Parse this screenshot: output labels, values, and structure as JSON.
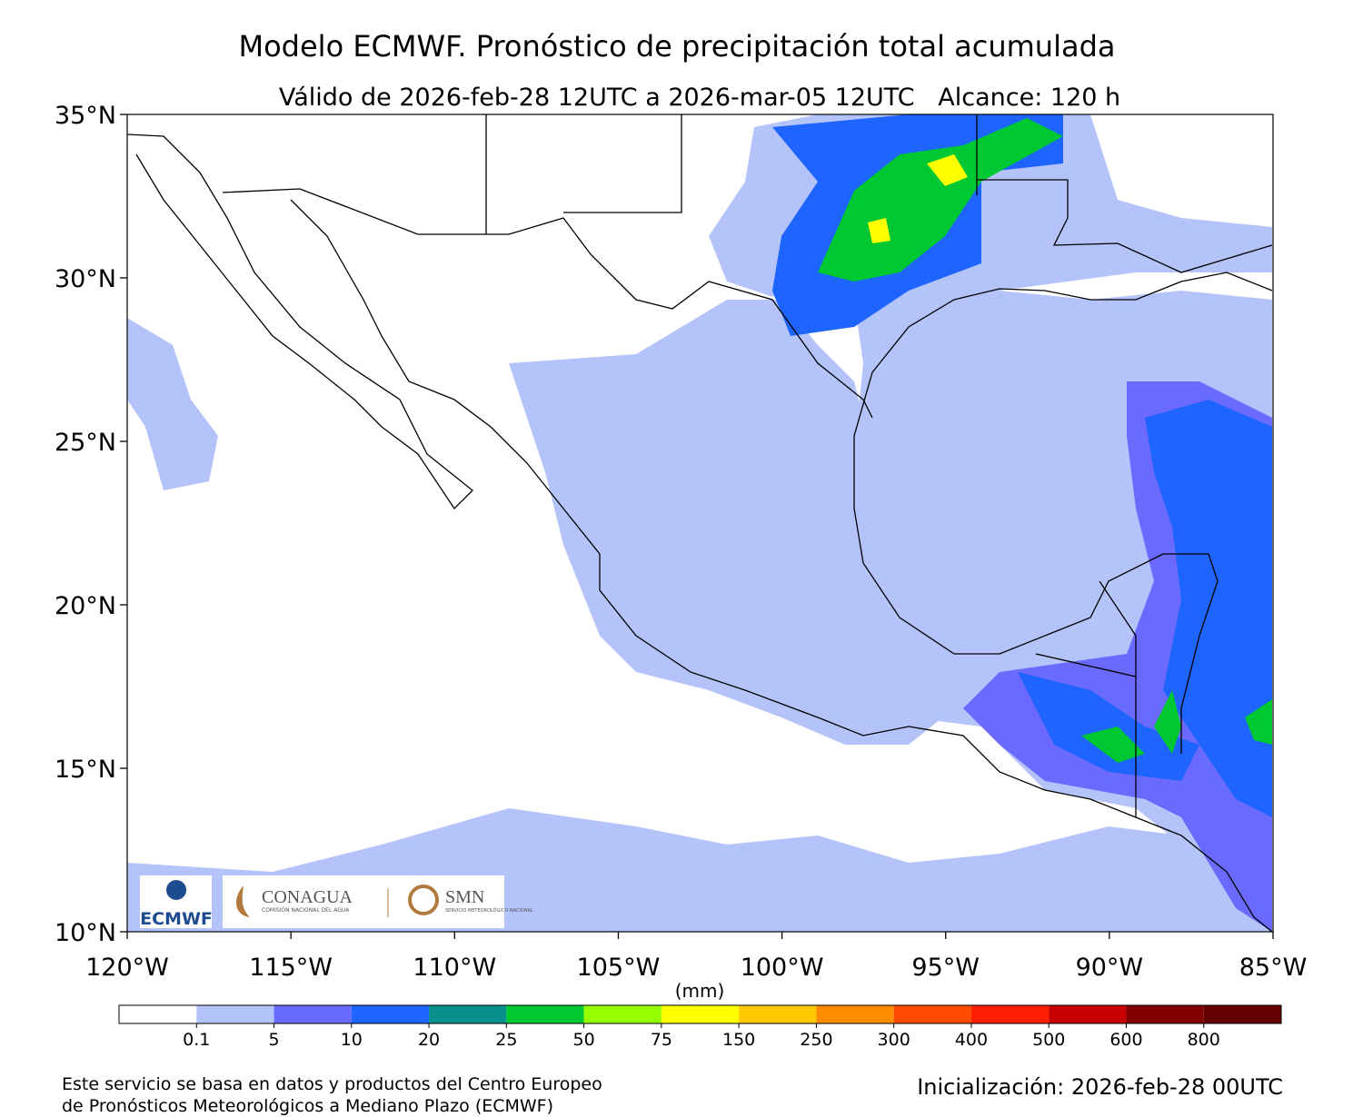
{
  "title": "Modelo ECMWF. Pronóstico de precipitación total acumulada",
  "subtitle": "Válido de 2026-feb-28 12UTC a 2026-mar-05 12UTC   Alcance: 120 h",
  "map": {
    "xlim": [
      -120,
      -85
    ],
    "ylim": [
      10,
      35
    ],
    "xticks": [
      {
        "value": -120,
        "label": "120°W"
      },
      {
        "value": -115,
        "label": "115°W"
      },
      {
        "value": -110,
        "label": "110°W"
      },
      {
        "value": -105,
        "label": "105°W"
      },
      {
        "value": -100,
        "label": "100°W"
      },
      {
        "value": -95,
        "label": "95°W"
      },
      {
        "value": -90,
        "label": "90°W"
      },
      {
        "value": -85,
        "label": "85°W"
      }
    ],
    "yticks": [
      {
        "value": 10,
        "label": "10°N"
      },
      {
        "value": 15,
        "label": "15°N"
      },
      {
        "value": 20,
        "label": "20°N"
      },
      {
        "value": 25,
        "label": "25°N"
      },
      {
        "value": 30,
        "label": "30°N"
      },
      {
        "value": 35,
        "label": "35°N"
      }
    ]
  },
  "colorbar": {
    "unit": "(mm)",
    "colors": [
      "#ffffff",
      "#b4c3fa",
      "#6a6aff",
      "#1e64ff",
      "#0a8f8f",
      "#00c832",
      "#96ff00",
      "#ffff00",
      "#ffc800",
      "#ff8c00",
      "#ff4b00",
      "#ff1e00",
      "#c80000",
      "#820000",
      "#640000"
    ],
    "ticks": [
      0.1,
      5,
      10,
      20,
      25,
      50,
      75,
      150,
      250,
      300,
      400,
      500,
      600,
      800
    ]
  },
  "logos": {
    "ecmwf": "ECMWF",
    "conagua": "CONAGUA",
    "conagua_sub": "COMISIÓN NACIONAL DEL AGUA",
    "smn": "SMN",
    "smn_sub": "SERVICIO METEOROLÓGICO NACIONAL"
  },
  "footer": {
    "note": [
      "Este servicio se basa en datos y productos del Centro Europeo",
      "de Pronósticos Meteorológicos a Mediano Plazo (ECMWF)"
    ],
    "init": "Inicialización: 2026-feb-28 00UTC"
  }
}
